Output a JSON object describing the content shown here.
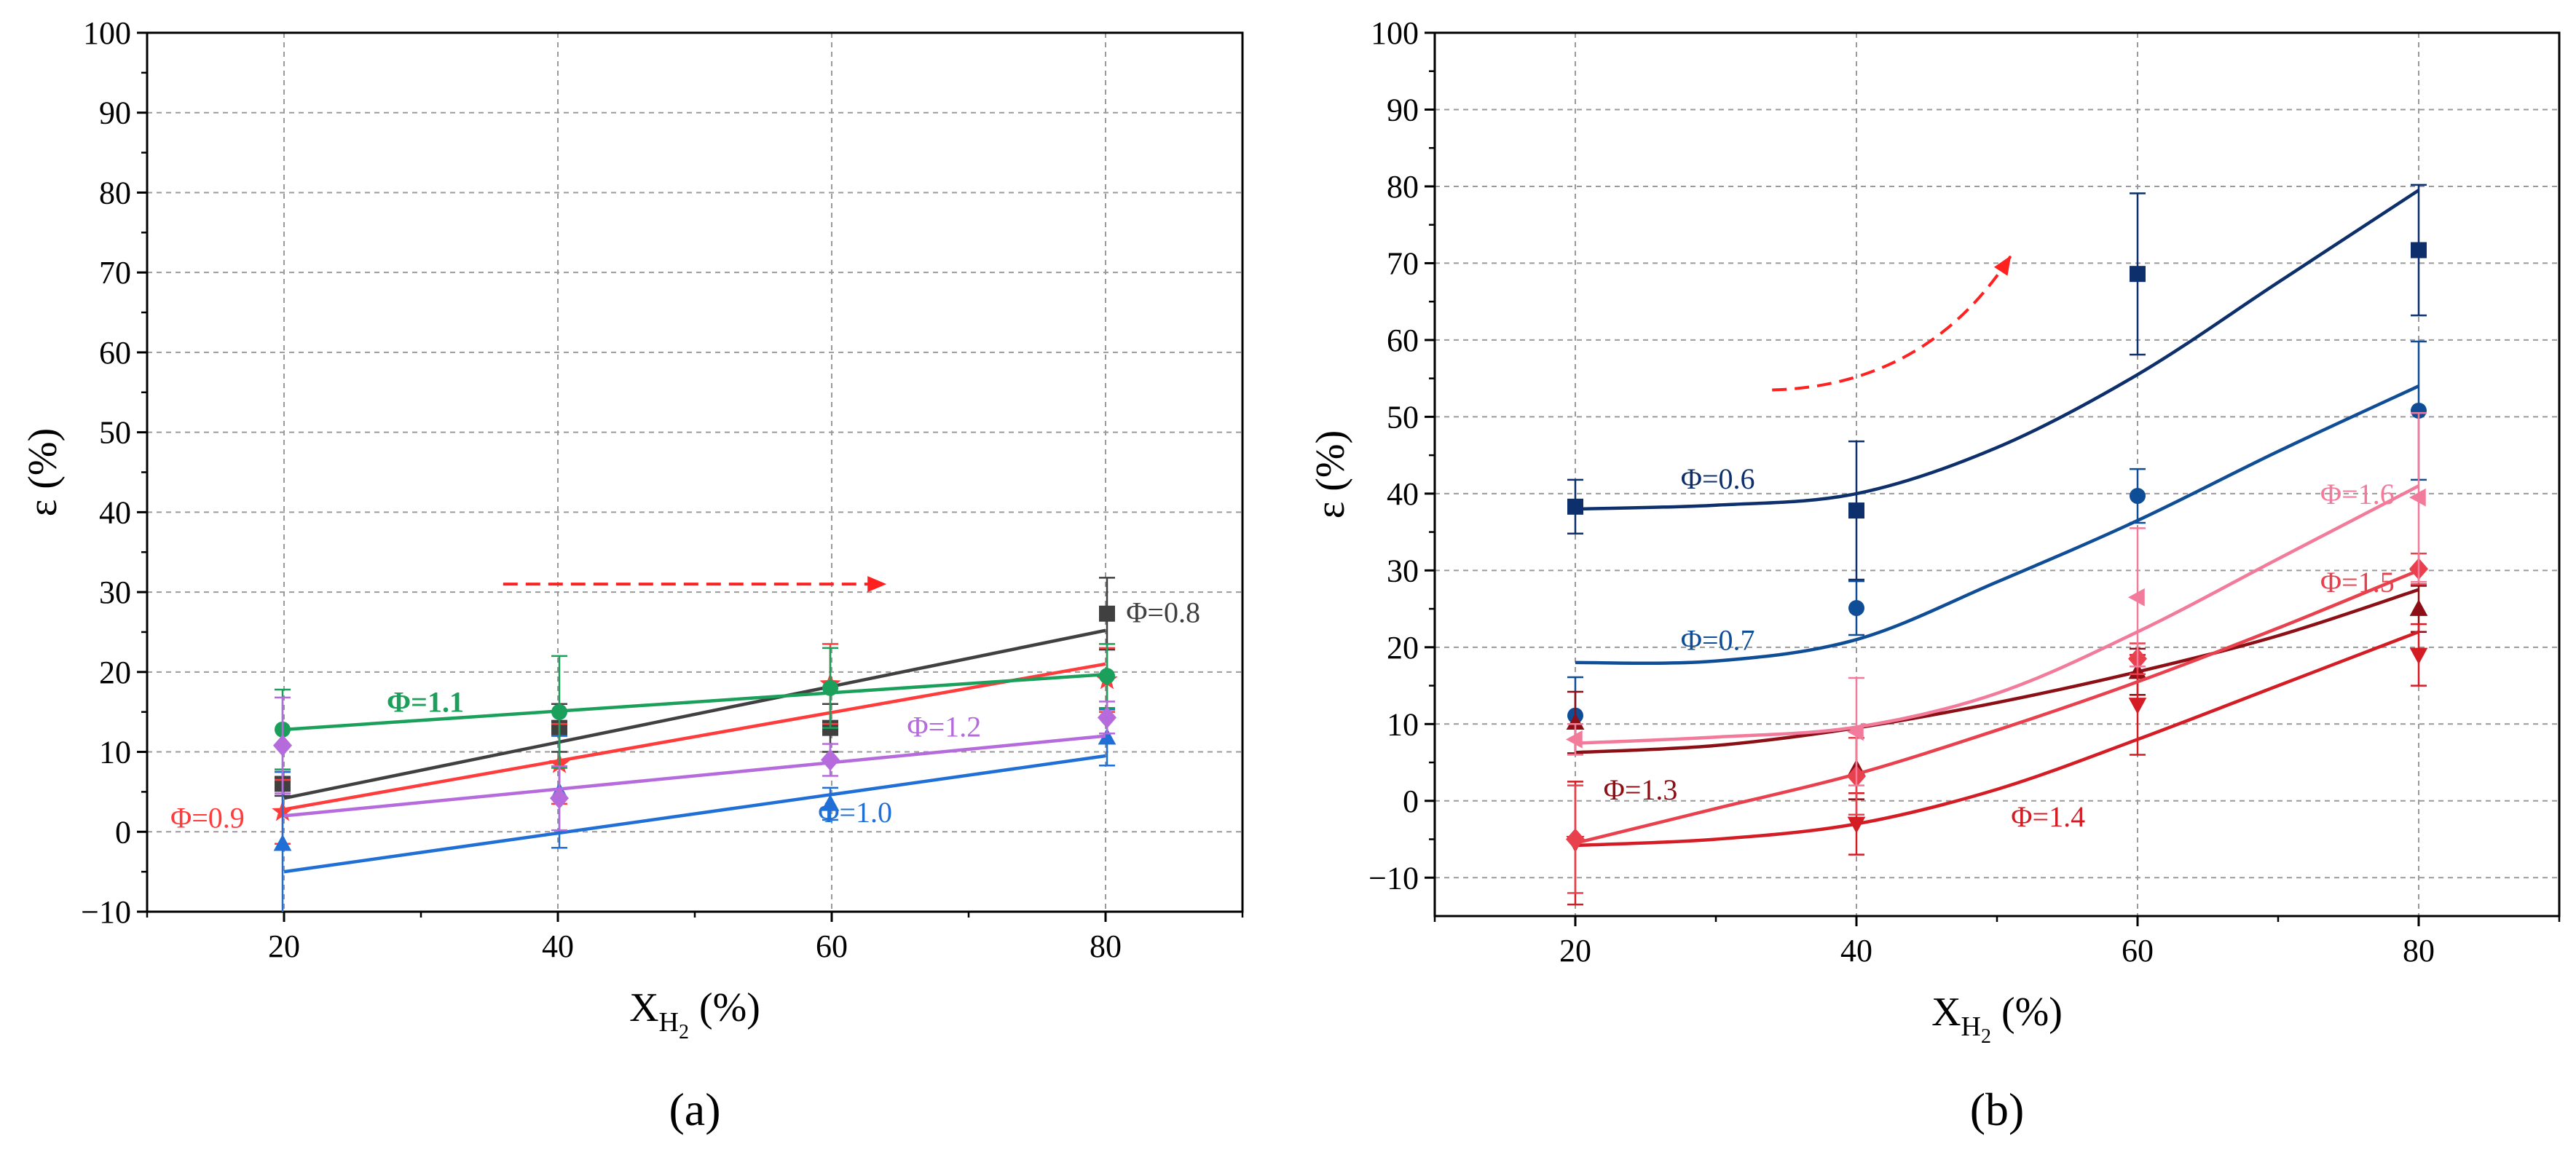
{
  "figure": {
    "panel_a_label": "(a)",
    "panel_b_label": "(b)"
  },
  "chart_data": [
    {
      "type": "line",
      "panel": "a",
      "label": "(a)",
      "title": "",
      "xlabel": {
        "main": "X",
        "sub": "H",
        "subsub": "2",
        "unit": " (%)"
      },
      "ylabel": "ε (%)",
      "xlim": [
        10,
        90
      ],
      "ylim": [
        -10,
        100
      ],
      "xticks": [
        20,
        40,
        60,
        80
      ],
      "yticks": [
        -10,
        0,
        10,
        20,
        30,
        40,
        50,
        60,
        70,
        80,
        90,
        100
      ],
      "grid": true,
      "arrow": {
        "type": "straight",
        "from": [
          36,
          31
        ],
        "to": [
          64,
          31
        ],
        "color": "#ff2020"
      },
      "series": [
        {
          "name": "Φ=0.8",
          "color": "#404040",
          "marker": "square",
          "bold": false,
          "x": [
            20,
            40,
            60,
            80
          ],
          "y": [
            6,
            13,
            13,
            27.3
          ],
          "err": [
            1.5,
            3,
            3,
            4.5
          ],
          "fit": [
            [
              20,
              4.2
            ],
            [
              80,
              25.2
            ]
          ],
          "label_at": [
            81.5,
            27.5
          ]
        },
        {
          "name": "Φ=0.9",
          "color": "#ff3b3b",
          "marker": "star",
          "bold": false,
          "x": [
            20,
            40,
            60,
            80
          ],
          "y": [
            2.5,
            8.5,
            18.5,
            19
          ],
          "err": [
            4,
            5,
            5,
            4
          ],
          "fit": [
            [
              20,
              2.8
            ],
            [
              80,
              21
            ]
          ],
          "label_at": [
            11.7,
            1.8
          ]
        },
        {
          "name": "Φ=1.0",
          "color": "#1f6fd6",
          "marker": "triangle",
          "bold": false,
          "x": [
            20,
            40,
            60,
            80
          ],
          "y": [
            -1.5,
            5,
            3.5,
            11.8
          ],
          "err": [
            9,
            7,
            2,
            3.5
          ],
          "fit": [
            [
              20,
              -5
            ],
            [
              80,
              9.5
            ]
          ],
          "label_at": [
            59,
            2.5
          ]
        },
        {
          "name": "Φ=1.1",
          "color": "#1aa05a",
          "marker": "circle",
          "bold": true,
          "x": [
            20,
            40,
            60,
            80
          ],
          "y": [
            12.8,
            15,
            18,
            19.5
          ],
          "err": [
            5,
            7,
            5,
            4
          ],
          "fit": [
            [
              20,
              12.8
            ],
            [
              80,
              19.7
            ]
          ],
          "label_at": [
            27.5,
            16.3
          ]
        },
        {
          "name": "Φ=1.2",
          "color": "#b66bdc",
          "marker": "diamond",
          "bold": false,
          "x": [
            20,
            40,
            60,
            80
          ],
          "y": [
            10.8,
            4.2,
            9,
            14.3
          ],
          "err": [
            6,
            4,
            2,
            2
          ],
          "fit": [
            [
              20,
              2
            ],
            [
              80,
              12
            ]
          ],
          "label_at": [
            65.5,
            13.2
          ]
        }
      ]
    },
    {
      "type": "line",
      "panel": "b",
      "label": "(b)",
      "title": "",
      "xlabel": {
        "main": "X",
        "sub": "H",
        "subsub": "2",
        "unit": " (%)"
      },
      "ylabel": "ε (%)",
      "xlim": [
        10,
        90
      ],
      "ylim": [
        -15,
        100
      ],
      "xticks": [
        20,
        40,
        60,
        80
      ],
      "yticks": [
        -10,
        0,
        10,
        20,
        30,
        40,
        50,
        60,
        70,
        80,
        90,
        100
      ],
      "grid": true,
      "arrow": {
        "type": "curved",
        "from": [
          34,
          53.5
        ],
        "control": [
          45,
          54
        ],
        "to": [
          51,
          71
        ],
        "color": "#ff2020"
      },
      "series": [
        {
          "name": "Φ=0.6",
          "color": "#0d2f6b",
          "marker": "square",
          "bold": false,
          "x": [
            20,
            40,
            60,
            80
          ],
          "y": [
            38.3,
            37.8,
            68.6,
            71.7
          ],
          "err": [
            3.5,
            9,
            10.5,
            8.5
          ],
          "curve": [
            [
              20,
              38
            ],
            [
              30,
              38.5
            ],
            [
              40,
              40
            ],
            [
              50,
              46
            ],
            [
              60,
              55.5
            ],
            [
              70,
              67.5
            ],
            [
              80,
              79.5
            ]
          ],
          "label_at": [
            27.5,
            42
          ]
        },
        {
          "name": "Φ=0.7",
          "color": "#0f4d96",
          "marker": "circle",
          "bold": false,
          "x": [
            20,
            40,
            60,
            80
          ],
          "y": [
            11.1,
            25.1,
            39.7,
            50.8
          ],
          "err": [
            5,
            3.5,
            3.5,
            9
          ],
          "curve": [
            [
              20,
              18
            ],
            [
              30,
              18.2
            ],
            [
              40,
              21
            ],
            [
              50,
              28.5
            ],
            [
              60,
              36.5
            ],
            [
              70,
              45.5
            ],
            [
              80,
              54
            ]
          ],
          "label_at": [
            27.5,
            21
          ]
        },
        {
          "name": "Φ=1.3",
          "color": "#8b0f14",
          "marker": "triangle",
          "bold": false,
          "x": [
            20,
            40,
            60,
            80
          ],
          "y": [
            10.2,
            4.2,
            16.8,
            25
          ],
          "err": [
            4,
            4,
            3,
            3
          ],
          "curve": [
            [
              20,
              6.3
            ],
            [
              30,
              7.2
            ],
            [
              40,
              9.5
            ],
            [
              50,
              12.8
            ],
            [
              60,
              16.8
            ],
            [
              70,
              21.5
            ],
            [
              80,
              27.5
            ]
          ],
          "label_at": [
            22,
            1.5
          ]
        },
        {
          "name": "Φ=1.4",
          "color": "#d41c24",
          "marker": "triangle-down",
          "bold": false,
          "x": [
            20,
            40,
            60,
            80
          ],
          "y": [
            -5.5,
            -3,
            12.5,
            19
          ],
          "err": [
            8,
            4,
            6.5,
            4
          ],
          "curve": [
            [
              20,
              -5.8
            ],
            [
              30,
              -5
            ],
            [
              40,
              -3
            ],
            [
              50,
              1.5
            ],
            [
              60,
              8
            ],
            [
              70,
              15
            ],
            [
              80,
              22
            ]
          ],
          "label_at": [
            51,
            -2
          ]
        },
        {
          "name": "Φ=1.5",
          "color": "#e8404c",
          "marker": "diamond",
          "bold": false,
          "x": [
            20,
            40,
            60,
            80
          ],
          "y": [
            -5,
            3.2,
            18.5,
            30.2
          ],
          "err": [
            7,
            5,
            2,
            2
          ],
          "curve": [
            [
              20,
              -5.5
            ],
            [
              30,
              -1
            ],
            [
              40,
              3.5
            ],
            [
              50,
              9.2
            ],
            [
              60,
              15.5
            ],
            [
              70,
              22.5
            ],
            [
              80,
              30
            ]
          ],
          "label_at": [
            73,
            28.5
          ]
        },
        {
          "name": "Φ=1.6",
          "color": "#f27a9a",
          "marker": "triangle-left",
          "bold": false,
          "x": [
            20,
            40,
            60,
            80
          ],
          "y": [
            8,
            9,
            26.5,
            39.5
          ],
          "err": [
            2,
            7,
            9,
            11
          ],
          "curve": [
            [
              20,
              7.5
            ],
            [
              30,
              8.3
            ],
            [
              40,
              9.6
            ],
            [
              50,
              14
            ],
            [
              60,
              22
            ],
            [
              70,
              31.5
            ],
            [
              80,
              41
            ]
          ],
          "label_at": [
            73,
            40
          ]
        }
      ]
    }
  ]
}
